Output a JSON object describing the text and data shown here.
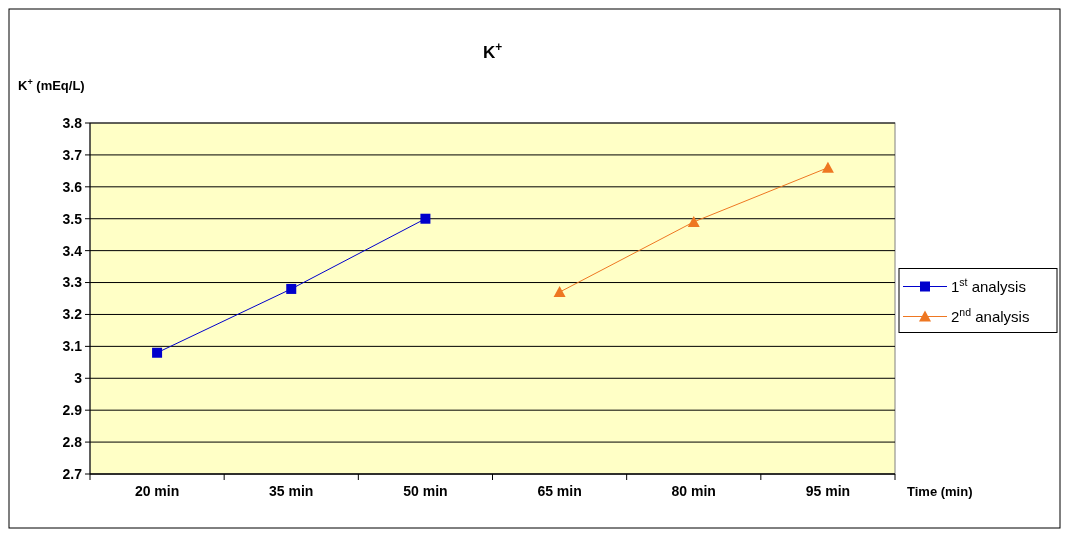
{
  "chart_data": {
    "type": "line",
    "title": "K$^{+}$",
    "ylabel": "K$^{+}$ (mEq/L)",
    "xlabel": "Time (min)",
    "categories": [
      "20 min",
      "35 min",
      "50 min",
      "65 min",
      "80 min",
      "95 min"
    ],
    "series": [
      {
        "name": "1$^{st}$ analysis",
        "color": "#0000cc",
        "marker": "square",
        "values": [
          3.08,
          3.28,
          3.5,
          null,
          null,
          null
        ]
      },
      {
        "name": "2$^{nd}$ analysis",
        "color": "#ee7722",
        "marker": "triangle",
        "values": [
          null,
          null,
          null,
          3.27,
          3.49,
          3.66
        ]
      }
    ],
    "ylim": [
      2.7,
      3.8
    ],
    "yticks": [
      2.7,
      2.8,
      2.9,
      3,
      3.1,
      3.2,
      3.3,
      3.4,
      3.5,
      3.6,
      3.7,
      3.8
    ],
    "grid": "y",
    "legend": "right"
  }
}
